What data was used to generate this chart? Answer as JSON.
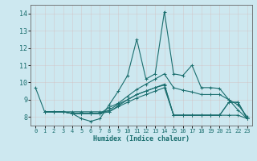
{
  "xlabel": "Humidex (Indice chaleur)",
  "ylabel": "",
  "bg_color": "#cde8f0",
  "grid_color": "#b8d4dc",
  "line_color": "#1a6e6e",
  "xlim": [
    -0.5,
    23.5
  ],
  "ylim": [
    7.5,
    14.5
  ],
  "yticks": [
    8,
    9,
    10,
    11,
    12,
    13,
    14
  ],
  "xticks": [
    0,
    1,
    2,
    3,
    4,
    5,
    6,
    7,
    8,
    9,
    10,
    11,
    12,
    13,
    14,
    15,
    16,
    17,
    18,
    19,
    20,
    21,
    22,
    23
  ],
  "lines": [
    {
      "x": [
        0,
        1,
        2,
        3,
        4,
        5,
        6,
        7,
        8,
        9,
        10,
        11,
        12,
        13,
        14,
        15,
        16,
        17,
        18,
        19,
        20,
        21,
        22,
        23
      ],
      "y": [
        9.7,
        8.3,
        8.3,
        8.3,
        8.2,
        7.9,
        7.75,
        7.9,
        8.7,
        9.5,
        10.4,
        12.5,
        10.2,
        10.5,
        14.1,
        10.5,
        10.4,
        11.0,
        9.7,
        9.7,
        9.65,
        9.0,
        8.4,
        7.9
      ]
    },
    {
      "x": [
        1,
        2,
        3,
        4,
        5,
        6,
        7,
        8,
        9,
        10,
        11,
        12,
        13,
        14,
        15,
        16,
        17,
        18,
        19,
        20,
        21,
        22,
        23
      ],
      "y": [
        8.3,
        8.3,
        8.3,
        8.2,
        8.2,
        8.2,
        8.2,
        8.55,
        8.8,
        9.2,
        9.6,
        9.9,
        10.2,
        10.5,
        9.7,
        9.55,
        9.45,
        9.3,
        9.3,
        9.3,
        9.0,
        8.7,
        8.0
      ]
    },
    {
      "x": [
        1,
        2,
        3,
        4,
        5,
        6,
        7,
        8,
        9,
        10,
        11,
        12,
        13,
        14,
        15,
        16,
        17,
        18,
        19,
        20,
        21,
        22,
        23
      ],
      "y": [
        8.3,
        8.3,
        8.3,
        8.2,
        8.2,
        8.2,
        8.2,
        8.4,
        8.75,
        9.0,
        9.3,
        9.5,
        9.7,
        9.9,
        8.1,
        8.1,
        8.1,
        8.1,
        8.1,
        8.1,
        8.1,
        8.1,
        7.9
      ]
    },
    {
      "x": [
        1,
        2,
        3,
        4,
        5,
        6,
        7,
        8,
        9,
        10,
        11,
        12,
        13,
        14,
        15,
        16,
        17,
        18,
        19,
        20,
        21,
        22,
        23
      ],
      "y": [
        8.3,
        8.3,
        8.3,
        8.2,
        8.2,
        8.2,
        8.2,
        8.3,
        8.6,
        8.85,
        9.1,
        9.3,
        9.5,
        9.7,
        8.1,
        8.1,
        8.1,
        8.1,
        8.1,
        8.1,
        8.85,
        8.85,
        7.9
      ]
    },
    {
      "x": [
        1,
        2,
        3,
        4,
        5,
        6,
        7,
        8,
        9,
        10,
        11,
        12,
        13,
        14,
        15,
        16,
        17,
        18,
        19,
        20,
        21,
        22,
        23
      ],
      "y": [
        8.3,
        8.3,
        8.3,
        8.3,
        8.3,
        8.3,
        8.3,
        8.3,
        8.65,
        9.0,
        9.3,
        9.5,
        9.7,
        9.85,
        8.1,
        8.1,
        8.1,
        8.1,
        8.1,
        8.1,
        8.85,
        8.85,
        7.9
      ]
    }
  ]
}
